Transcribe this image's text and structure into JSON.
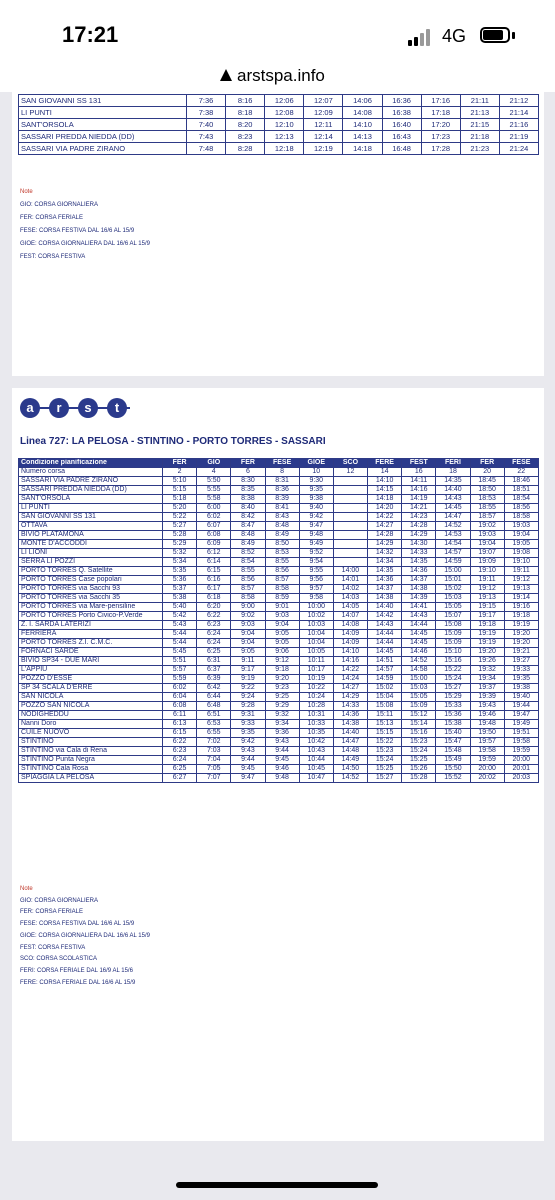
{
  "status_bar": {
    "time": "17:21",
    "network": "4G"
  },
  "browser": {
    "url": "arstspa.info"
  },
  "top_table": {
    "rows": [
      [
        "SAN GIOVANNI SS 131",
        "7:36",
        "8:16",
        "12:06",
        "12:07",
        "14:06",
        "16:36",
        "17:16",
        "21:11",
        "21:12"
      ],
      [
        "LI PUNTI",
        "7:38",
        "8:18",
        "12:08",
        "12:09",
        "14:08",
        "16:38",
        "17:18",
        "21:13",
        "21:14"
      ],
      [
        "SANT'ORSOLA",
        "7:40",
        "8:20",
        "12:10",
        "12:11",
        "14:10",
        "16:40",
        "17:20",
        "21:15",
        "21:16"
      ],
      [
        "SASSARI PREDDA NIEDDA (DD)",
        "7:43",
        "8:23",
        "12:13",
        "12:14",
        "14:13",
        "16:43",
        "17:23",
        "21:18",
        "21:19"
      ],
      [
        "SASSARI VIA PADRE ZIRANO",
        "7:48",
        "8:28",
        "12:18",
        "12:19",
        "14:18",
        "16:48",
        "17:28",
        "21:23",
        "21:24"
      ]
    ]
  },
  "notes1": {
    "title": "Note",
    "items": [
      "GIO: CORSA GIORNALIERA",
      "FER: CORSA FERIALE",
      "FESE: CORSA FESTIVA DAL 16/6 AL 15/9",
      "GIOE: CORSA GIORNALIERA DAL 16/6 AL 15/9",
      "FEST: CORSA FESTIVA"
    ]
  },
  "logo": {
    "letters": [
      "a",
      "r",
      "s",
      "t"
    ]
  },
  "line_title": "Linea 727: LA PELOSA - STINTINO - PORTO TORRES - SASSARI",
  "main_table": {
    "header": [
      "Condizione pianificazione",
      "FER",
      "GIO",
      "FER",
      "FESE",
      "GIOE",
      "SCO",
      "FERE",
      "FEST",
      "FERI",
      "FER",
      "FESE"
    ],
    "rows": [
      [
        "Numero corsa",
        "2",
        "4",
        "6",
        "8",
        "10",
        "12",
        "14",
        "16",
        "18",
        "20",
        "22"
      ],
      [
        "SASSARI VIA PADRE ZIRANO",
        "5:10",
        "5:50",
        "8:30",
        "8:31",
        "9:30",
        "",
        "14:10",
        "14:11",
        "14:35",
        "18:45",
        "18:46"
      ],
      [
        "SASSARI PREDDA NIEDDA (DD)",
        "5:15",
        "5:55",
        "8:35",
        "8:36",
        "9:35",
        "",
        "14:15",
        "14:16",
        "14:40",
        "18:50",
        "18:51"
      ],
      [
        "SANT'ORSOLA",
        "5:18",
        "5:58",
        "8:38",
        "8:39",
        "9:38",
        "",
        "14:18",
        "14:19",
        "14:43",
        "18:53",
        "18:54"
      ],
      [
        "LI PUNTI",
        "5:20",
        "6:00",
        "8:40",
        "8:41",
        "9:40",
        "",
        "14:20",
        "14:21",
        "14:45",
        "18:55",
        "18:56"
      ],
      [
        "SAN GIOVANNI SS 131",
        "5:22",
        "6:02",
        "8:42",
        "8:43",
        "9:42",
        "",
        "14:22",
        "14:23",
        "14:47",
        "18:57",
        "18:58"
      ],
      [
        "OTTAVA",
        "5:27",
        "6:07",
        "8:47",
        "8:48",
        "9:47",
        "",
        "14:27",
        "14:28",
        "14:52",
        "19:02",
        "19:03"
      ],
      [
        "BIVIO PLATAMONA",
        "5:28",
        "6:08",
        "8:48",
        "8:49",
        "9:48",
        "",
        "14:28",
        "14:29",
        "14:53",
        "19:03",
        "19:04"
      ],
      [
        "MONTE D'ACCODDI",
        "5:29",
        "6:09",
        "8:49",
        "8:50",
        "9:49",
        "",
        "14:29",
        "14:30",
        "14:54",
        "19:04",
        "19:05"
      ],
      [
        "LI LIONI",
        "5:32",
        "6:12",
        "8:52",
        "8:53",
        "9:52",
        "",
        "14:32",
        "14:33",
        "14:57",
        "19:07",
        "19:08"
      ],
      [
        "SERRA LI POZZI",
        "5:34",
        "6:14",
        "8:54",
        "8:55",
        "9:54",
        "",
        "14:34",
        "14:35",
        "14:59",
        "19:09",
        "19:10"
      ],
      [
        "PORTO TORRES Q. Satellite",
        "5:35",
        "6:15",
        "8:55",
        "8:56",
        "9:55",
        "14:00",
        "14:35",
        "14:36",
        "15:00",
        "19:10",
        "19:11"
      ],
      [
        "PORTO TORRES Case popolari",
        "5:36",
        "6:16",
        "8:56",
        "8:57",
        "9:56",
        "14:01",
        "14:36",
        "14:37",
        "15:01",
        "19:11",
        "19:12"
      ],
      [
        "PORTO TORRES via Sacchi 93",
        "5:37",
        "6:17",
        "8:57",
        "8:58",
        "9:57",
        "14:02",
        "14:37",
        "14:38",
        "15:02",
        "19:12",
        "19:13"
      ],
      [
        "PORTO TORRES via Sacchi 35",
        "5:38",
        "6:18",
        "8:58",
        "8:59",
        "9:58",
        "14:03",
        "14:38",
        "14:39",
        "15:03",
        "19:13",
        "19:14"
      ],
      [
        "PORTO TORRES via Mare-pensiline",
        "5:40",
        "6:20",
        "9:00",
        "9:01",
        "10:00",
        "14:05",
        "14:40",
        "14:41",
        "15:05",
        "19:15",
        "19:16"
      ],
      [
        "PORTO TORRES Porto Civico-P.Verde",
        "5:42",
        "6:22",
        "9:02",
        "9:03",
        "10:02",
        "14:07",
        "14:42",
        "14:43",
        "15:07",
        "19:17",
        "19:18"
      ],
      [
        "Z. I. SARDA LATERIZI",
        "5:43",
        "6:23",
        "9:03",
        "9:04",
        "10:03",
        "14:08",
        "14:43",
        "14:44",
        "15:08",
        "19:18",
        "19:19"
      ],
      [
        "FERRIERA",
        "5:44",
        "6:24",
        "9:04",
        "9:05",
        "10:04",
        "14:09",
        "14:44",
        "14:45",
        "15:09",
        "19:19",
        "19:20"
      ],
      [
        "PORTO TORRES Z.I. C.M.C.",
        "5:44",
        "6:24",
        "9:04",
        "9:05",
        "10:04",
        "14:09",
        "14:44",
        "14:45",
        "15:09",
        "19:19",
        "19:20"
      ],
      [
        "FORNACI SARDE",
        "5:45",
        "6:25",
        "9:05",
        "9:06",
        "10:05",
        "14:10",
        "14:45",
        "14:46",
        "15:10",
        "19:20",
        "19:21"
      ],
      [
        "BIVIO SP34 - DUE MARI",
        "5:51",
        "6:31",
        "9:11",
        "9:12",
        "10:11",
        "14:16",
        "14:51",
        "14:52",
        "15:16",
        "19:26",
        "19:27"
      ],
      [
        "L'APPIU",
        "5:57",
        "6:37",
        "9:17",
        "9:18",
        "10:17",
        "14:22",
        "14:57",
        "14:58",
        "15:22",
        "19:32",
        "19:33"
      ],
      [
        "POZZO D'ESSE",
        "5:59",
        "6:39",
        "9:19",
        "9:20",
        "10:19",
        "14:24",
        "14:59",
        "15:00",
        "15:24",
        "19:34",
        "19:35"
      ],
      [
        "SP 34 SCALA D'ERRE",
        "6:02",
        "6:42",
        "9:22",
        "9:23",
        "10:22",
        "14:27",
        "15:02",
        "15:03",
        "15:27",
        "19:37",
        "19:38"
      ],
      [
        "SAN NICOLA",
        "6:04",
        "6:44",
        "9:24",
        "9:25",
        "10:24",
        "14:29",
        "15:04",
        "15:05",
        "15:29",
        "19:39",
        "19:40"
      ],
      [
        "POZZO SAN NICOLA",
        "6:08",
        "6:48",
        "9:28",
        "9:29",
        "10:28",
        "14:33",
        "15:08",
        "15:09",
        "15:33",
        "19:43",
        "19:44"
      ],
      [
        "NODIGHEDDU",
        "6:11",
        "6:51",
        "9:31",
        "9:32",
        "10:31",
        "14:36",
        "15:11",
        "15:12",
        "15:36",
        "19:46",
        "19:47"
      ],
      [
        "Nanni Doro",
        "6:13",
        "6:53",
        "9:33",
        "9:34",
        "10:33",
        "14:38",
        "15:13",
        "15:14",
        "15:38",
        "19:48",
        "19:49"
      ],
      [
        "CUILE NUOVO",
        "6:15",
        "6:55",
        "9:35",
        "9:36",
        "10:35",
        "14:40",
        "15:15",
        "15:16",
        "15:40",
        "19:50",
        "19:51"
      ],
      [
        "STINTINO",
        "6:22",
        "7:02",
        "9:42",
        "9:43",
        "10:42",
        "14:47",
        "15:22",
        "15:23",
        "15:47",
        "19:57",
        "19:58"
      ],
      [
        "STINTINO via Cala di Rena",
        "6:23",
        "7:03",
        "9:43",
        "9:44",
        "10:43",
        "14:48",
        "15:23",
        "15:24",
        "15:48",
        "19:58",
        "19:59"
      ],
      [
        "STINTINO Punta Negra",
        "6:24",
        "7:04",
        "9:44",
        "9:45",
        "10:44",
        "14:49",
        "15:24",
        "15:25",
        "15:49",
        "19:59",
        "20:00"
      ],
      [
        "STINTINO Cala Rosa",
        "6:25",
        "7:05",
        "9:45",
        "9:46",
        "10:45",
        "14:50",
        "15:25",
        "15:26",
        "15:50",
        "20:00",
        "20:01"
      ],
      [
        "SPIAGGIA LA PELOSA",
        "6:27",
        "7:07",
        "9:47",
        "9:48",
        "10:47",
        "14:52",
        "15:27",
        "15:28",
        "15:52",
        "20:02",
        "20:03"
      ]
    ]
  },
  "notes2": {
    "title": "Note",
    "items": [
      "GIO: CORSA GIORNALIERA",
      "FER: CORSA FERIALE",
      "FESE: CORSA FESTIVA DAL 16/6 AL 15/9",
      "GIOE: CORSA GIORNALIERA DAL 16/6 AL 15/9",
      "FEST: CORSA FESTIVA",
      "SCO: CORSA SCOLASTICA",
      "FERI: CORSA FERIALE DAL 16/9 AL 15/6",
      "FERE: CORSA FERIALE DAL 16/6 AL 15/9"
    ]
  }
}
